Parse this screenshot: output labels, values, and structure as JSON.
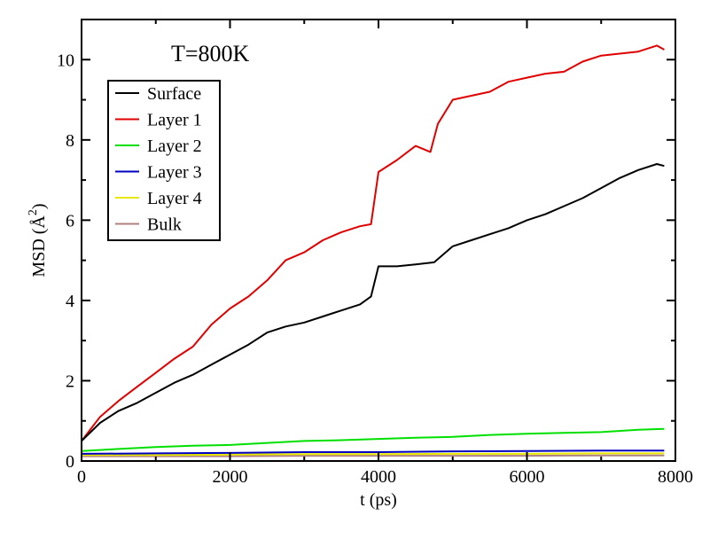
{
  "chart_data": {
    "type": "line",
    "annotation": "T=800K",
    "xlabel": "t (ps)",
    "ylabel_main": "MSD (",
    "ylabel_unit": "Å",
    "ylabel_exp": "2",
    "ylabel_close": ")",
    "xlim": [
      0,
      8000
    ],
    "ylim": [
      0,
      11
    ],
    "xticks": [
      0,
      2000,
      4000,
      6000,
      8000
    ],
    "yticks": [
      0,
      2,
      4,
      6,
      8,
      10
    ],
    "grid": false,
    "legend_position": "upper-left",
    "series": [
      {
        "name": "Surface",
        "color": "#000000",
        "points": [
          [
            0,
            0.5
          ],
          [
            250,
            0.95
          ],
          [
            500,
            1.25
          ],
          [
            750,
            1.45
          ],
          [
            1000,
            1.7
          ],
          [
            1250,
            1.95
          ],
          [
            1500,
            2.15
          ],
          [
            1750,
            2.4
          ],
          [
            2000,
            2.65
          ],
          [
            2250,
            2.9
          ],
          [
            2500,
            3.2
          ],
          [
            2750,
            3.35
          ],
          [
            3000,
            3.45
          ],
          [
            3250,
            3.6
          ],
          [
            3500,
            3.75
          ],
          [
            3750,
            3.9
          ],
          [
            3900,
            4.1
          ],
          [
            4000,
            4.85
          ],
          [
            4250,
            4.85
          ],
          [
            4500,
            4.9
          ],
          [
            4750,
            4.95
          ],
          [
            5000,
            5.35
          ],
          [
            5250,
            5.5
          ],
          [
            5500,
            5.65
          ],
          [
            5750,
            5.8
          ],
          [
            6000,
            6.0
          ],
          [
            6250,
            6.15
          ],
          [
            6500,
            6.35
          ],
          [
            6750,
            6.55
          ],
          [
            7000,
            6.8
          ],
          [
            7250,
            7.05
          ],
          [
            7500,
            7.25
          ],
          [
            7750,
            7.4
          ],
          [
            7850,
            7.35
          ]
        ]
      },
      {
        "name": "Layer 1",
        "color": "#e00000",
        "points": [
          [
            0,
            0.5
          ],
          [
            250,
            1.1
          ],
          [
            500,
            1.5
          ],
          [
            750,
            1.85
          ],
          [
            1000,
            2.2
          ],
          [
            1250,
            2.55
          ],
          [
            1500,
            2.85
          ],
          [
            1750,
            3.4
          ],
          [
            2000,
            3.8
          ],
          [
            2250,
            4.1
          ],
          [
            2500,
            4.5
          ],
          [
            2750,
            5.0
          ],
          [
            3000,
            5.2
          ],
          [
            3250,
            5.5
          ],
          [
            3500,
            5.7
          ],
          [
            3750,
            5.85
          ],
          [
            3900,
            5.9
          ],
          [
            4000,
            7.2
          ],
          [
            4250,
            7.5
          ],
          [
            4500,
            7.85
          ],
          [
            4700,
            7.7
          ],
          [
            4800,
            8.4
          ],
          [
            5000,
            9.0
          ],
          [
            5250,
            9.1
          ],
          [
            5500,
            9.2
          ],
          [
            5750,
            9.45
          ],
          [
            6000,
            9.55
          ],
          [
            6250,
            9.65
          ],
          [
            6500,
            9.7
          ],
          [
            6750,
            9.95
          ],
          [
            7000,
            10.1
          ],
          [
            7250,
            10.15
          ],
          [
            7500,
            10.2
          ],
          [
            7750,
            10.35
          ],
          [
            7850,
            10.25
          ]
        ]
      },
      {
        "name": "Layer 2",
        "color": "#00e000",
        "points": [
          [
            0,
            0.25
          ],
          [
            500,
            0.3
          ],
          [
            1000,
            0.35
          ],
          [
            1500,
            0.38
          ],
          [
            2000,
            0.4
          ],
          [
            2500,
            0.45
          ],
          [
            3000,
            0.5
          ],
          [
            3500,
            0.52
          ],
          [
            4000,
            0.55
          ],
          [
            4500,
            0.58
          ],
          [
            5000,
            0.6
          ],
          [
            5500,
            0.65
          ],
          [
            6000,
            0.68
          ],
          [
            6500,
            0.7
          ],
          [
            7000,
            0.72
          ],
          [
            7500,
            0.78
          ],
          [
            7850,
            0.8
          ]
        ]
      },
      {
        "name": "Layer 3",
        "color": "#0000c0",
        "points": [
          [
            0,
            0.18
          ],
          [
            1000,
            0.19
          ],
          [
            2000,
            0.2
          ],
          [
            3000,
            0.22
          ],
          [
            4000,
            0.22
          ],
          [
            5000,
            0.24
          ],
          [
            6000,
            0.25
          ],
          [
            7000,
            0.26
          ],
          [
            7850,
            0.26
          ]
        ]
      },
      {
        "name": "Layer 4",
        "color": "#e8e800",
        "points": [
          [
            0,
            0.15
          ],
          [
            1000,
            0.15
          ],
          [
            2000,
            0.16
          ],
          [
            3000,
            0.17
          ],
          [
            4000,
            0.17
          ],
          [
            5000,
            0.18
          ],
          [
            6000,
            0.18
          ],
          [
            7000,
            0.19
          ],
          [
            7850,
            0.19
          ]
        ]
      },
      {
        "name": "Bulk",
        "color": "#b08080",
        "points": [
          [
            0,
            0.12
          ],
          [
            1000,
            0.12
          ],
          [
            2000,
            0.12
          ],
          [
            3000,
            0.13
          ],
          [
            4000,
            0.13
          ],
          [
            5000,
            0.13
          ],
          [
            6000,
            0.13
          ],
          [
            7000,
            0.14
          ],
          [
            7850,
            0.14
          ]
        ]
      }
    ]
  }
}
